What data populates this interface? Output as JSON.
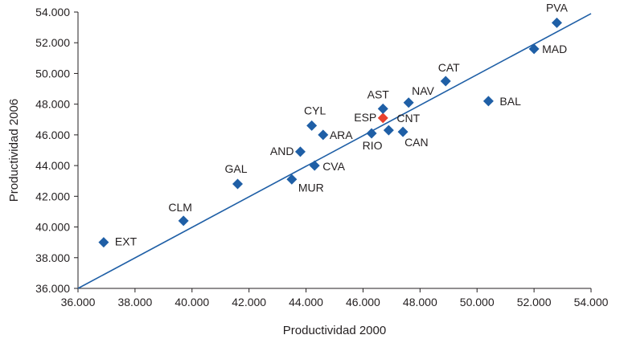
{
  "chart_data": {
    "type": "scatter",
    "xlabel": "Productividad 2000",
    "ylabel": "Productividad 2006",
    "xlim": [
      36000,
      54000
    ],
    "ylim": [
      36000,
      54000
    ],
    "x_ticks": [
      "36.000",
      "38.000",
      "40.000",
      "42.000",
      "44.000",
      "46.000",
      "48.000",
      "50.000",
      "52.000",
      "54.000"
    ],
    "y_ticks": [
      "36.000",
      "38.000",
      "40.000",
      "42.000",
      "44.000",
      "46.000",
      "48.000",
      "50.000",
      "52.000",
      "54.000"
    ],
    "grid": false,
    "point_color": "#1f5fa6",
    "highlight_color": "#e8412e",
    "trendline_color": "#1f5fa6",
    "points": [
      {
        "label": "EXT",
        "x": 36900,
        "y": 39000
      },
      {
        "label": "CLM",
        "x": 39700,
        "y": 40400
      },
      {
        "label": "GAL",
        "x": 41600,
        "y": 42800
      },
      {
        "label": "MUR",
        "x": 43500,
        "y": 43100
      },
      {
        "label": "CVA",
        "x": 44300,
        "y": 44000
      },
      {
        "label": "AND",
        "x": 43800,
        "y": 44900
      },
      {
        "label": "CYL",
        "x": 44200,
        "y": 46600
      },
      {
        "label": "ARA",
        "x": 44600,
        "y": 46000
      },
      {
        "label": "RIO",
        "x": 46300,
        "y": 46100
      },
      {
        "label": "ESP",
        "x": 46700,
        "y": 47100,
        "highlight": true
      },
      {
        "label": "AST",
        "x": 46700,
        "y": 47700
      },
      {
        "label": "CNT",
        "x": 46900,
        "y": 46300
      },
      {
        "label": "CAN",
        "x": 47400,
        "y": 46200
      },
      {
        "label": "NAV",
        "x": 47600,
        "y": 48100
      },
      {
        "label": "CAT",
        "x": 48900,
        "y": 49500
      },
      {
        "label": "BAL",
        "x": 50400,
        "y": 48200
      },
      {
        "label": "MAD",
        "x": 52000,
        "y": 51600
      },
      {
        "label": "PVA",
        "x": 52800,
        "y": 53300
      }
    ],
    "trendline": {
      "x": [
        36000,
        54000
      ],
      "y": [
        36000,
        53900
      ]
    }
  }
}
